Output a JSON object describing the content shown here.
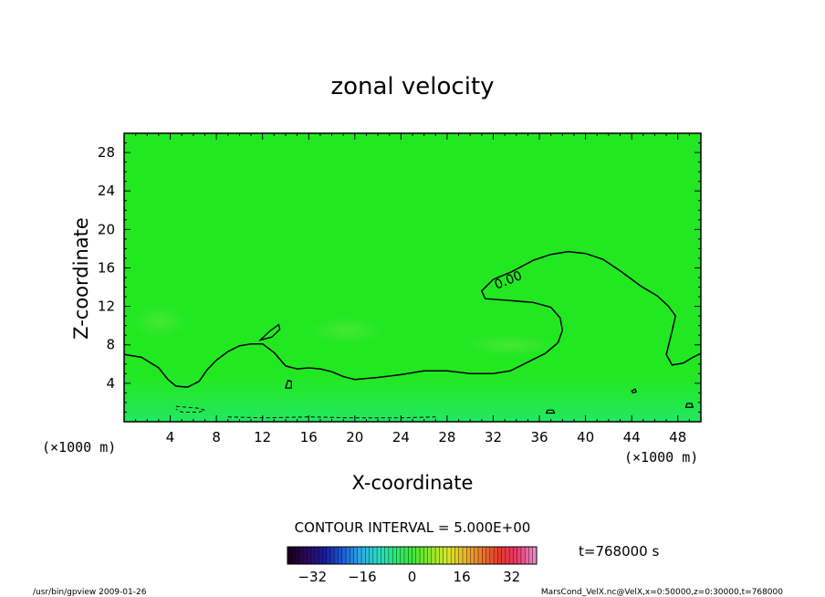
{
  "chart_data": {
    "type": "heatmap",
    "title": "zonal velocity",
    "xlabel": "X-coordinate",
    "ylabel": "Z-coordinate",
    "x_unit": "(×1000 m)",
    "y_unit": "(×1000 m)",
    "x_ticks": [
      4,
      8,
      12,
      16,
      20,
      24,
      28,
      32,
      36,
      40,
      44,
      48
    ],
    "y_ticks": [
      4,
      8,
      12,
      16,
      20,
      24,
      28
    ],
    "xlim": [
      0,
      50
    ],
    "ylim": [
      0,
      30
    ],
    "contour_interval": "CONTOUR INTERVAL = 5.000E+00",
    "contour_label": "0.00",
    "field_color": "#22e822",
    "colorbar": {
      "ticks": [
        -32,
        -16,
        0,
        16,
        32
      ],
      "range": [
        -40,
        40
      ],
      "colors": [
        "#1a001a",
        "#2a0a5e",
        "#1a1aa0",
        "#1a5ad8",
        "#2aa8e8",
        "#2ad8c8",
        "#2ae87a",
        "#3ae83a",
        "#8ae82a",
        "#d8e82a",
        "#e8b82a",
        "#e8782a",
        "#e8382a",
        "#e83a6a",
        "#e88ac8"
      ]
    },
    "time_label": "t=768000  s",
    "zero_contour": [
      [
        0,
        7
      ],
      [
        1.5,
        6.7
      ],
      [
        3,
        5.6
      ],
      [
        3.8,
        4.4
      ],
      [
        4.5,
        3.7
      ],
      [
        5.5,
        3.6
      ],
      [
        6.5,
        4.2
      ],
      [
        7.2,
        5.4
      ],
      [
        8,
        6.4
      ],
      [
        9,
        7.3
      ],
      [
        10,
        7.9
      ],
      [
        11,
        8.1
      ],
      [
        12,
        8.1
      ],
      [
        13,
        7.2
      ],
      [
        14,
        5.8
      ],
      [
        15,
        5.5
      ],
      [
        16,
        5.6
      ],
      [
        17,
        5.5
      ],
      [
        18,
        5.2
      ],
      [
        19,
        4.7
      ],
      [
        20,
        4.4
      ],
      [
        22,
        4.6
      ],
      [
        24,
        4.9
      ],
      [
        26,
        5.3
      ],
      [
        28,
        5.3
      ],
      [
        30,
        5.0
      ],
      [
        32,
        5.0
      ],
      [
        33.5,
        5.3
      ],
      [
        35,
        6.2
      ],
      [
        36.5,
        7.1
      ],
      [
        37.6,
        8.2
      ],
      [
        38,
        9.5
      ],
      [
        37.8,
        10.8
      ],
      [
        37,
        11.9
      ],
      [
        35.5,
        12.4
      ],
      [
        33.5,
        12.6
      ],
      [
        31.3,
        12.8
      ],
      [
        31,
        13.6
      ],
      [
        32,
        14.8
      ],
      [
        33.6,
        15.6
      ],
      [
        35.5,
        16.8
      ],
      [
        37,
        17.4
      ],
      [
        38.5,
        17.7
      ],
      [
        40,
        17.5
      ],
      [
        41.5,
        16.9
      ],
      [
        43,
        15.7
      ],
      [
        44.8,
        14.1
      ],
      [
        46.2,
        13.1
      ],
      [
        47.2,
        12.0
      ],
      [
        47.8,
        11.0
      ],
      [
        47.5,
        9.4
      ],
      [
        47.0,
        7.0
      ],
      [
        47.5,
        5.9
      ],
      [
        48.5,
        6.1
      ],
      [
        49.3,
        6.7
      ],
      [
        50,
        7.1
      ]
    ],
    "closed_contours": [
      [
        [
          11.8,
          8.5
        ],
        [
          12.6,
          9.4
        ],
        [
          13.4,
          10.1
        ],
        [
          13.5,
          9.6
        ],
        [
          12.8,
          8.8
        ],
        [
          11.8,
          8.5
        ]
      ],
      [
        [
          14.0,
          3.5
        ],
        [
          14.5,
          3.5
        ],
        [
          14.5,
          4.2
        ],
        [
          14.2,
          4.3
        ],
        [
          14.0,
          3.5
        ]
      ],
      [
        [
          44.1,
          3.0
        ],
        [
          44.4,
          3.1
        ],
        [
          44.3,
          3.4
        ],
        [
          44.0,
          3.2
        ],
        [
          44.1,
          3.0
        ]
      ],
      [
        [
          48.7,
          1.5
        ],
        [
          49.3,
          1.5
        ],
        [
          49.2,
          1.9
        ],
        [
          48.8,
          1.9
        ],
        [
          48.7,
          1.5
        ]
      ],
      [
        [
          36.6,
          0.9
        ],
        [
          37.3,
          0.9
        ],
        [
          37.2,
          1.2
        ],
        [
          36.7,
          1.2
        ],
        [
          36.6,
          0.9
        ]
      ]
    ],
    "dashed_contours": [
      [
        [
          4.5,
          1.6
        ],
        [
          5.5,
          1.5
        ],
        [
          6.5,
          1.4
        ],
        [
          7,
          1.2
        ],
        [
          6.5,
          1.0
        ],
        [
          5,
          1.0
        ],
        [
          4.5,
          1.3
        ]
      ],
      [
        [
          9,
          0.5
        ],
        [
          12,
          0.4
        ],
        [
          16,
          0.5
        ],
        [
          20,
          0.4
        ],
        [
          24,
          0.4
        ],
        [
          27,
          0.5
        ]
      ]
    ]
  },
  "footer": {
    "left": "/usr/bin/gpview   2009-01-26",
    "right": "MarsCond_VelX.nc@VelX,x=0:50000,z=0:30000,t=768000"
  }
}
